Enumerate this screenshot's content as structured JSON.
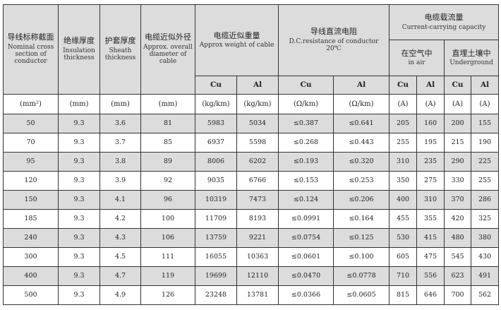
{
  "headers": {
    "nominal": {
      "zh": "导线标称截面",
      "en": "Nominal cross section of conductor"
    },
    "insulation": {
      "zh": "绝缘厚度",
      "en": "Insulation thickness"
    },
    "sheath": {
      "zh": "护套厚度",
      "en": "Sheath thickness"
    },
    "diameter": {
      "zh": "电缆近似外径",
      "en": "Approx. overall diameter of cable"
    },
    "weight": {
      "zh": "电缆近似重量",
      "en": "Approx weight of cable"
    },
    "resistance": {
      "zh": "导线直流电阻",
      "en": "D.C.resistance of conductor",
      "temp": "20℃"
    },
    "capacity": {
      "zh": "电缆载流量",
      "en": "Current-carrying capacity"
    },
    "in_air": {
      "zh": "在空气中",
      "en": "in air"
    },
    "underground": {
      "zh": "直埋土壤中",
      "en": "Underground"
    },
    "cu": "Cu",
    "al": "Al"
  },
  "units": [
    "(mm²)",
    "(mm)",
    "(mm)",
    "(mm)",
    "(kg/km)",
    "(kg/km)",
    "(Ω/km)",
    "(Ω/km)",
    "(A)",
    "(A)",
    "(A)",
    "(A)"
  ],
  "rows": [
    [
      "50",
      "9.3",
      "3.6",
      "81",
      "5983",
      "5034",
      "≤0.387",
      "≤0.641",
      "205",
      "160",
      "200",
      "155"
    ],
    [
      "70",
      "9.3",
      "3.7",
      "85",
      "6937",
      "5598",
      "≤0.268",
      "≤0.443",
      "255",
      "195",
      "215",
      "190"
    ],
    [
      "95",
      "9.3",
      "3.8",
      "89",
      "8006",
      "6202",
      "≤0.193",
      "≤0.320",
      "310",
      "235",
      "290",
      "225"
    ],
    [
      "120",
      "9.3",
      "3.9",
      "92",
      "9035",
      "6766",
      "≤0.153",
      "≤0.253",
      "350",
      "275",
      "330",
      "255"
    ],
    [
      "150",
      "9.3",
      "4.1",
      "96",
      "10319",
      "7473",
      "≤0.124",
      "≤0.206",
      "400",
      "310",
      "370",
      "286"
    ],
    [
      "185",
      "9.3",
      "4.2",
      "100",
      "11709",
      "8193",
      "≤0.0991",
      "≤0.164",
      "455",
      "355",
      "420",
      "325"
    ],
    [
      "240",
      "9.3",
      "4.3",
      "106",
      "13759",
      "9221",
      "≤0.0754",
      "≤0.125",
      "530",
      "415",
      "480",
      "380"
    ],
    [
      "300",
      "9.3",
      "4.5",
      "111",
      "16055",
      "10363",
      "≤0.0601",
      "≤0.100",
      "605",
      "475",
      "545",
      "430"
    ],
    [
      "400",
      "9.3",
      "4.7",
      "119",
      "19699",
      "12110",
      "≤0.0470",
      "≤0.0778",
      "710",
      "556",
      "623",
      "491"
    ],
    [
      "500",
      "9.3",
      "4.9",
      "126",
      "23248",
      "13781",
      "≤0.0366",
      "≤0.0605",
      "815",
      "646",
      "700",
      "562"
    ]
  ],
  "colors": {
    "header_bg": "#dcdcdc",
    "border": "#333333"
  }
}
